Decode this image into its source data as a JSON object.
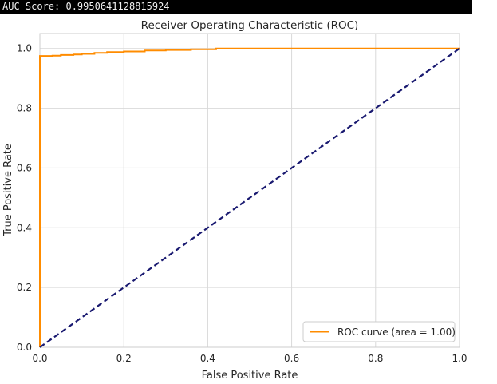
{
  "console": {
    "output": "AUC Score: 0.9950641128815924"
  },
  "chart_data": {
    "type": "line",
    "title": "Receiver Operating Characteristic (ROC)",
    "xlabel": "False Positive Rate",
    "ylabel": "True Positive Rate",
    "xlim": [
      0.0,
      1.0
    ],
    "ylim": [
      0.0,
      1.05
    ],
    "xticks": [
      "0.0",
      "0.2",
      "0.4",
      "0.6",
      "0.8",
      "1.0"
    ],
    "yticks": [
      "0.0",
      "0.2",
      "0.4",
      "0.6",
      "0.8",
      "1.0"
    ],
    "grid": true,
    "legend_position": "lower-right",
    "series": [
      {
        "name": "ROC curve (area = 1.00)",
        "color": "#ff8c00",
        "style": "solid",
        "x": [
          0.0,
          0.0,
          0.0,
          0.03,
          0.05,
          0.08,
          0.1,
          0.13,
          0.16,
          0.2,
          0.25,
          0.3,
          0.36,
          0.42,
          0.5,
          0.7,
          1.0
        ],
        "y": [
          0.0,
          0.973,
          0.975,
          0.976,
          0.978,
          0.98,
          0.982,
          0.985,
          0.988,
          0.99,
          0.993,
          0.995,
          0.997,
          1.0,
          1.0,
          1.0,
          1.0
        ]
      },
      {
        "color": "#191970",
        "style": "dashed",
        "x": [
          0.0,
          1.0
        ],
        "y": [
          0.0,
          1.0
        ]
      }
    ]
  }
}
